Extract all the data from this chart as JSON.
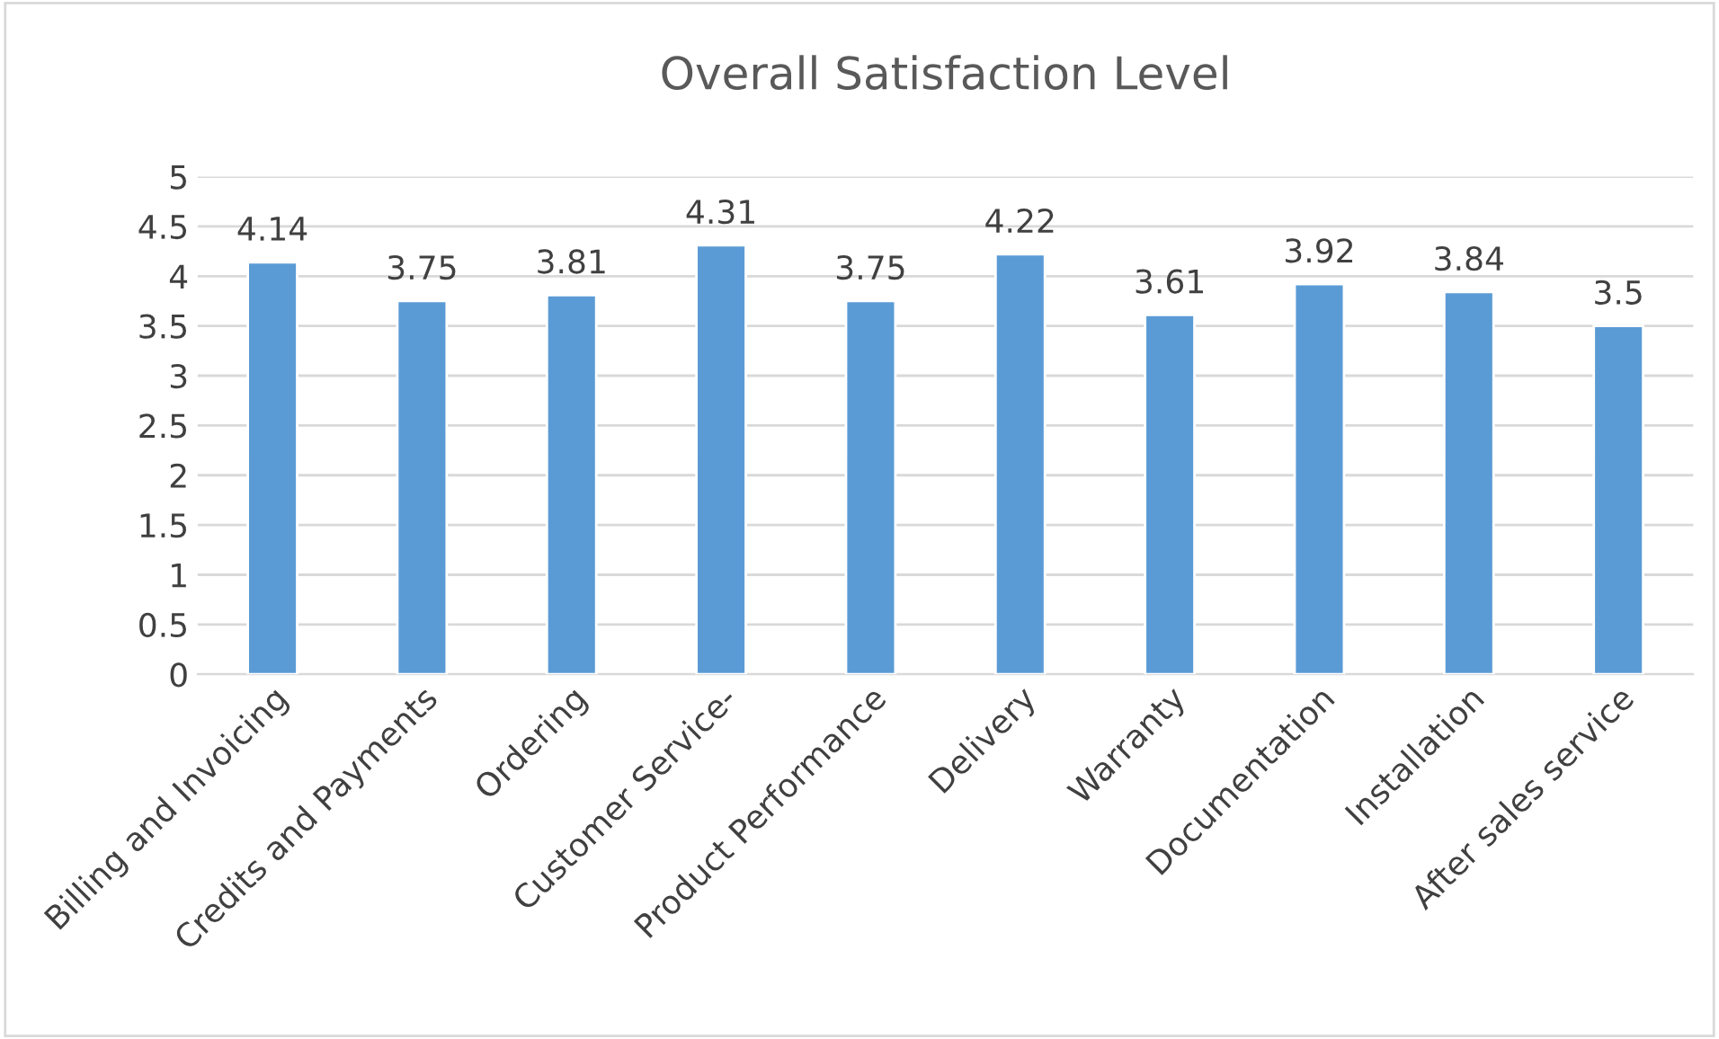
{
  "chart_data": {
    "type": "bar",
    "title": "Overall Satisfaction Level",
    "categories": [
      "Billing and Invoicing",
      "Credits and Payments",
      "Ordering",
      "Customer Service-",
      "Product Performance",
      "Delivery",
      "Warranty",
      "Documentation",
      "Installation",
      "After sales service"
    ],
    "values": [
      4.14,
      3.75,
      3.81,
      4.31,
      3.75,
      4.22,
      3.61,
      3.92,
      3.84,
      3.5
    ],
    "color": "#5b9bd5",
    "ylim": [
      0,
      5
    ],
    "yticks": [
      0,
      {
        "value": 0.5,
        "label": "0.5"
      },
      1,
      {
        "value": 1.5,
        "label": "1.5"
      },
      2,
      {
        "value": 2.5,
        "label": "2.5"
      },
      3,
      {
        "value": 3.5,
        "label": "3.5"
      },
      4,
      {
        "value": 4.5,
        "label": "4.5"
      },
      5
    ],
    "grid": "y",
    "data_labels": true,
    "legend": false
  }
}
